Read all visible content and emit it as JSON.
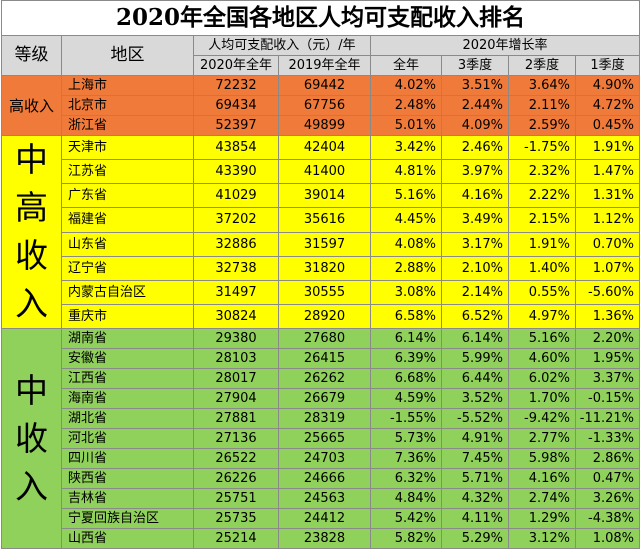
{
  "title": "2020年全国各地区人均可支配收入排名",
  "headers": {
    "level": "等级",
    "region": "地区",
    "income": "人均可支配收入（元）/年",
    "income_2020": "2020年全年",
    "income_2019": "2019年全年",
    "growth": "2020年增长率",
    "full_year": "全年",
    "q3": "3季度",
    "q2": "2季度",
    "q1": "1季度"
  },
  "tiers": [
    {
      "name": "高收入",
      "chars": [
        "高收入"
      ],
      "color": "#f07a3a"
    },
    {
      "name": "中高收入",
      "chars": [
        "中",
        "高",
        "收",
        "入"
      ],
      "color": "#ffff00"
    },
    {
      "name": "中收入",
      "chars": [
        "中",
        "收",
        "入"
      ],
      "color": "#8fd15a"
    }
  ],
  "rows": [
    {
      "tier": 0,
      "region": "上海市",
      "y2020": "72232",
      "y2019": "69442",
      "full": "4.02%",
      "q3": "3.51%",
      "q2": "3.64%",
      "q1": "4.90%"
    },
    {
      "tier": 0,
      "region": "北京市",
      "y2020": "69434",
      "y2019": "67756",
      "full": "2.48%",
      "q3": "2.44%",
      "q2": "2.11%",
      "q1": "4.72%"
    },
    {
      "tier": 0,
      "region": "浙江省",
      "y2020": "52397",
      "y2019": "49899",
      "full": "5.01%",
      "q3": "4.09%",
      "q2": "2.59%",
      "q1": "0.45%"
    },
    {
      "tier": 1,
      "region": "天津市",
      "y2020": "43854",
      "y2019": "42404",
      "full": "3.42%",
      "q3": "2.46%",
      "q2": "-1.75%",
      "q1": "1.91%"
    },
    {
      "tier": 1,
      "region": "江苏省",
      "y2020": "43390",
      "y2019": "41400",
      "full": "4.81%",
      "q3": "3.97%",
      "q2": "2.32%",
      "q1": "1.47%"
    },
    {
      "tier": 1,
      "region": "广东省",
      "y2020": "41029",
      "y2019": "39014",
      "full": "5.16%",
      "q3": "4.16%",
      "q2": "2.22%",
      "q1": "1.31%"
    },
    {
      "tier": 1,
      "region": "福建省",
      "y2020": "37202",
      "y2019": "35616",
      "full": "4.45%",
      "q3": "3.49%",
      "q2": "2.15%",
      "q1": "1.12%"
    },
    {
      "tier": 1,
      "region": "山东省",
      "y2020": "32886",
      "y2019": "31597",
      "full": "4.08%",
      "q3": "3.17%",
      "q2": "1.91%",
      "q1": "0.70%"
    },
    {
      "tier": 1,
      "region": "辽宁省",
      "y2020": "32738",
      "y2019": "31820",
      "full": "2.88%",
      "q3": "2.10%",
      "q2": "1.40%",
      "q1": "1.07%"
    },
    {
      "tier": 1,
      "region": "内蒙古自治区",
      "y2020": "31497",
      "y2019": "30555",
      "full": "3.08%",
      "q3": "2.14%",
      "q2": "0.55%",
      "q1": "-5.60%"
    },
    {
      "tier": 1,
      "region": "重庆市",
      "y2020": "30824",
      "y2019": "28920",
      "full": "6.58%",
      "q3": "6.52%",
      "q2": "4.97%",
      "q1": "1.36%"
    },
    {
      "tier": 2,
      "region": "湖南省",
      "y2020": "29380",
      "y2019": "27680",
      "full": "6.14%",
      "q3": "6.14%",
      "q2": "5.16%",
      "q1": "2.20%"
    },
    {
      "tier": 2,
      "region": "安徽省",
      "y2020": "28103",
      "y2019": "26415",
      "full": "6.39%",
      "q3": "5.99%",
      "q2": "4.60%",
      "q1": "1.95%"
    },
    {
      "tier": 2,
      "region": "江西省",
      "y2020": "28017",
      "y2019": "26262",
      "full": "6.68%",
      "q3": "6.44%",
      "q2": "6.02%",
      "q1": "3.37%"
    },
    {
      "tier": 2,
      "region": "海南省",
      "y2020": "27904",
      "y2019": "26679",
      "full": "4.59%",
      "q3": "3.52%",
      "q2": "1.70%",
      "q1": "-0.15%"
    },
    {
      "tier": 2,
      "region": "湖北省",
      "y2020": "27881",
      "y2019": "28319",
      "full": "-1.55%",
      "q3": "-5.52%",
      "q2": "-9.42%",
      "q1": "-11.21%"
    },
    {
      "tier": 2,
      "region": "河北省",
      "y2020": "27136",
      "y2019": "25665",
      "full": "5.73%",
      "q3": "4.91%",
      "q2": "2.77%",
      "q1": "-1.33%"
    },
    {
      "tier": 2,
      "region": "四川省",
      "y2020": "26522",
      "y2019": "24703",
      "full": "7.36%",
      "q3": "7.45%",
      "q2": "5.98%",
      "q1": "2.86%"
    },
    {
      "tier": 2,
      "region": "陕西省",
      "y2020": "26226",
      "y2019": "24666",
      "full": "6.32%",
      "q3": "5.71%",
      "q2": "4.16%",
      "q1": "0.47%"
    },
    {
      "tier": 2,
      "region": "吉林省",
      "y2020": "25751",
      "y2019": "24563",
      "full": "4.84%",
      "q3": "4.32%",
      "q2": "2.74%",
      "q1": "3.26%"
    },
    {
      "tier": 2,
      "region": "宁夏回族自治区",
      "y2020": "25735",
      "y2019": "24412",
      "full": "5.42%",
      "q3": "4.11%",
      "q2": "1.29%",
      "q1": "-4.38%"
    },
    {
      "tier": 2,
      "region": "山西省",
      "y2020": "25214",
      "y2019": "23828",
      "full": "5.82%",
      "q3": "5.29%",
      "q2": "3.12%",
      "q1": "1.08%"
    }
  ]
}
